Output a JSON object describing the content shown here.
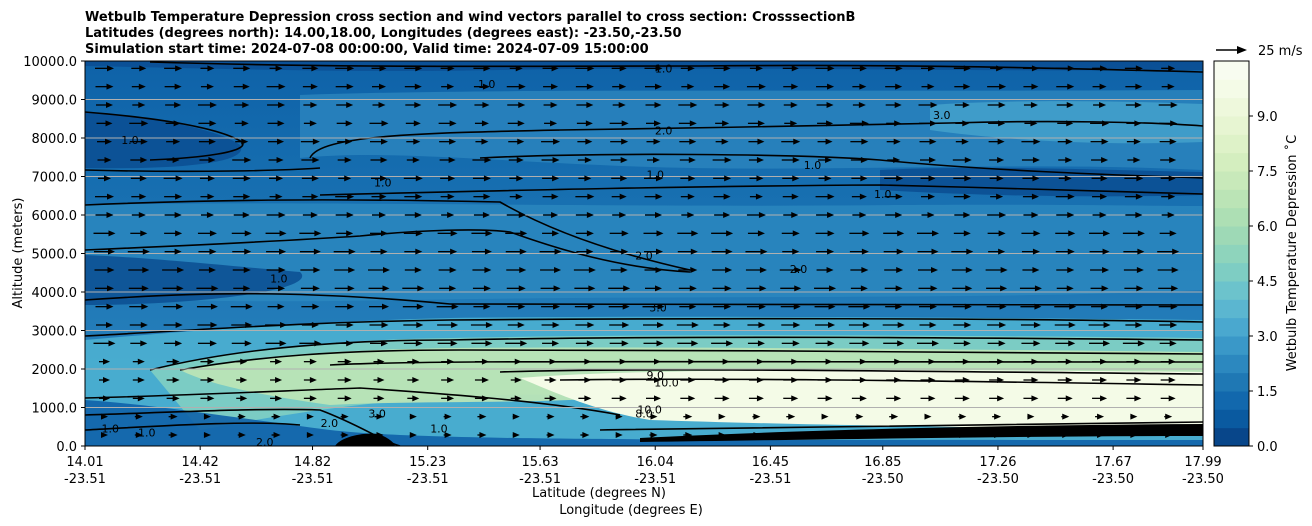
{
  "chart_data": {
    "type": "heatmap",
    "title_lines": [
      "Wetbulb Temperature Depression cross section and wind vectors parallel to cross section: CrosssectionB",
      "Latitudes (degrees north): 14.00,18.00, Longitudes (degrees east): -23.50,-23.50",
      "Simulation start time: 2024-07-08 00:00:00, Valid time: 2024-07-09 15:00:00"
    ],
    "ylabel": "Altitude (meters)",
    "xlabel_line1": "Latitude (degrees N)",
    "xlabel_line2": "Longitude (degrees E)",
    "y_ticks": [
      "0.0",
      "1000.0",
      "2000.0",
      "3000.0",
      "4000.0",
      "5000.0",
      "6000.0",
      "7000.0",
      "8000.0",
      "9000.0",
      "10000.0"
    ],
    "y_tick_values": [
      0,
      1000,
      2000,
      3000,
      4000,
      5000,
      6000,
      7000,
      8000,
      9000,
      10000
    ],
    "ylim": [
      0,
      10000
    ],
    "x_ticks": [
      {
        "lat": "14.01",
        "lon": "-23.51"
      },
      {
        "lat": "14.42",
        "lon": "-23.51"
      },
      {
        "lat": "14.82",
        "lon": "-23.51"
      },
      {
        "lat": "15.23",
        "lon": "-23.51"
      },
      {
        "lat": "15.63",
        "lon": "-23.51"
      },
      {
        "lat": "16.04",
        "lon": "-23.51"
      },
      {
        "lat": "16.45",
        "lon": "-23.51"
      },
      {
        "lat": "16.85",
        "lon": "-23.50"
      },
      {
        "lat": "17.26",
        "lon": "-23.50"
      },
      {
        "lat": "17.67",
        "lon": "-23.50"
      },
      {
        "lat": "17.99",
        "lon": "-23.50"
      }
    ],
    "x_tick_lat_values": [
      14.01,
      14.42,
      14.82,
      15.23,
      15.63,
      16.04,
      16.45,
      16.85,
      17.26,
      17.67,
      17.99
    ],
    "xlim": [
      14.01,
      17.99
    ],
    "grid": "horizontal",
    "colorbar": {
      "label": "Wetbulb Temperature Depression ˚C",
      "ticks": [
        "0.0",
        "1.5",
        "3.0",
        "4.5",
        "6.0",
        "7.5",
        "9.0"
      ],
      "tick_values": [
        0,
        1.5,
        3,
        4.5,
        6,
        7.5,
        9
      ],
      "range": [
        0,
        10.5
      ],
      "levels": 21,
      "colors": [
        "#08468a",
        "#0a5aa0",
        "#1268ad",
        "#1f78b4",
        "#2c88bf",
        "#3a98c8",
        "#4aa8cf",
        "#5bb6d0",
        "#6cc3cc",
        "#7ecdc3",
        "#8ed4bc",
        "#9ed9b6",
        "#addfb4",
        "#bbe4b6",
        "#c8e9ba",
        "#d4eebf",
        "#def2c8",
        "#e7f5d2",
        "#eef8dc",
        "#f4fbe7",
        "#f8fcf0"
      ],
      "placement": "right"
    },
    "wind_key": {
      "label": "25 m/s",
      "value": 25,
      "placement": "top-right"
    },
    "contour_labels": [
      {
        "text": "1.0",
        "lat": 15.44,
        "alt": 9400
      },
      {
        "text": "1.0",
        "lat": 16.07,
        "alt": 9800
      },
      {
        "text": "2.0",
        "lat": 16.07,
        "alt": 8200
      },
      {
        "text": "1.0",
        "lat": 16.04,
        "alt": 7050
      },
      {
        "text": "3.0",
        "lat": 17.06,
        "alt": 8600
      },
      {
        "text": "1.0",
        "lat": 16.6,
        "alt": 7300
      },
      {
        "text": "1.0",
        "lat": 16.85,
        "alt": 6550
      },
      {
        "text": "1.0",
        "lat": 14.17,
        "alt": 7950
      },
      {
        "text": "1.0",
        "lat": 15.07,
        "alt": 6850
      },
      {
        "text": "2.0",
        "lat": 16.0,
        "alt": 4950
      },
      {
        "text": "2.0",
        "lat": 16.55,
        "alt": 4600
      },
      {
        "text": "1.0",
        "lat": 14.7,
        "alt": 4350
      },
      {
        "text": "3.0",
        "lat": 16.05,
        "alt": 3600
      },
      {
        "text": "9.0",
        "lat": 16.04,
        "alt": 1850
      },
      {
        "text": "10.0",
        "lat": 16.08,
        "alt": 1650
      },
      {
        "text": "10.0",
        "lat": 16.02,
        "alt": 950
      },
      {
        "text": "8.0",
        "lat": 16.0,
        "alt": 850
      },
      {
        "text": "1.0",
        "lat": 14.1,
        "alt": 450
      },
      {
        "text": "1.0",
        "lat": 14.23,
        "alt": 350
      },
      {
        "text": "2.0",
        "lat": 14.65,
        "alt": 100
      },
      {
        "text": "3.0",
        "lat": 15.05,
        "alt": 850
      },
      {
        "text": "2.0",
        "lat": 14.88,
        "alt": 600
      },
      {
        "text": "1.0",
        "lat": 15.27,
        "alt": 450
      }
    ]
  }
}
